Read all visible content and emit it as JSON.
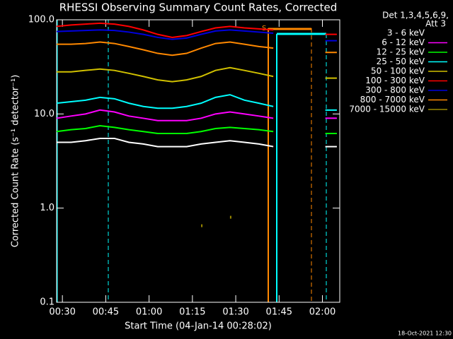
{
  "chart_data": {
    "type": "line",
    "title": "RHESSI Observing Summary Count Rates, Corrected",
    "x_label": "Start Time (04-Jan-14 00:28:02)",
    "y_label": "Corrected Count Rate (s⁻¹ detector⁻¹)",
    "legend_header": [
      "Det 1,3,4,5,6,9,",
      "Att 3"
    ],
    "flag_label": "S",
    "footer": "18-Oct-2021 12:30",
    "log_y": true,
    "xlim": [
      "00:28",
      "02:06"
    ],
    "xticks": [
      "00:30",
      "00:45",
      "01:00",
      "01:15",
      "01:30",
      "01:45",
      "02:00"
    ],
    "ylim": [
      0.1,
      100
    ],
    "yticks": [
      0.1,
      {
        "value": 1,
        "label": "1.0"
      },
      {
        "value": 10,
        "label": "10.0"
      },
      {
        "value": 100,
        "label": "100.0"
      }
    ],
    "x": [
      "00:28",
      "00:33",
      "00:38",
      "00:43",
      "00:48",
      "00:53",
      "00:58",
      "01:03",
      "01:08",
      "01:13",
      "01:18",
      "01:23",
      "01:28",
      "01:33",
      "01:38",
      "01:43",
      "01:50",
      "02:01",
      "02:05"
    ],
    "series": [
      {
        "name": "3 - 6 keV",
        "color": "#ffffff",
        "line_color": "#000000",
        "values": [
          5,
          5,
          5.2,
          5.5,
          5.5,
          5,
          4.8,
          4.5,
          4.5,
          4.5,
          4.8,
          5,
          5.2,
          5,
          4.8,
          4.5,
          null,
          4.5,
          4.5
        ]
      },
      {
        "name": "6 - 12 keV",
        "color": "#ff00ff",
        "values": [
          9,
          9.5,
          10,
          11,
          10.5,
          9.5,
          9,
          8.5,
          8.5,
          8.5,
          9,
          10,
          10.5,
          10,
          9.5,
          9,
          null,
          9,
          9
        ]
      },
      {
        "name": "12 - 25 keV",
        "color": "#00ff00",
        "values": [
          6.5,
          6.8,
          7,
          7.5,
          7.2,
          6.8,
          6.5,
          6.2,
          6.2,
          6.2,
          6.5,
          7,
          7.2,
          7,
          6.8,
          6.5,
          null,
          6.2,
          6.2
        ]
      },
      {
        "name": "25 - 50 keV",
        "color": "#00ffff",
        "values": [
          13,
          13.5,
          14,
          15,
          14.5,
          13,
          12,
          11.5,
          11.5,
          12,
          13,
          15,
          16,
          14,
          13,
          12,
          null,
          11,
          11
        ]
      },
      {
        "name": "50 - 100 keV",
        "color": "#d0c000",
        "values": [
          28,
          28,
          29,
          30,
          29,
          27,
          25,
          23,
          22,
          23,
          25,
          29,
          31,
          29,
          27,
          25,
          null,
          24,
          24
        ]
      },
      {
        "name": "100 - 300 keV",
        "color": "#ff0000",
        "values": [
          85,
          88,
          90,
          92,
          90,
          85,
          78,
          70,
          65,
          68,
          75,
          82,
          85,
          82,
          80,
          78,
          null,
          70,
          70
        ]
      },
      {
        "name": "300 - 800 keV",
        "color": "#0000dd",
        "values": [
          75,
          76,
          77,
          78,
          77,
          74,
          70,
          65,
          62,
          64,
          70,
          76,
          78,
          76,
          74,
          72,
          null,
          60,
          60
        ]
      },
      {
        "name": "800 - 7000 keV",
        "color": "#ff8800",
        "values": [
          55,
          55,
          56,
          58,
          56,
          52,
          48,
          44,
          42,
          44,
          50,
          56,
          58,
          55,
          52,
          50,
          null,
          45,
          45
        ]
      },
      {
        "name": "7000 - 15000 keV",
        "color": "#998800",
        "values": [
          null,
          null,
          null,
          null,
          null,
          null,
          null,
          null,
          null,
          null,
          0.65,
          null,
          0.8,
          null,
          null,
          null,
          null,
          null,
          null
        ]
      }
    ]
  }
}
